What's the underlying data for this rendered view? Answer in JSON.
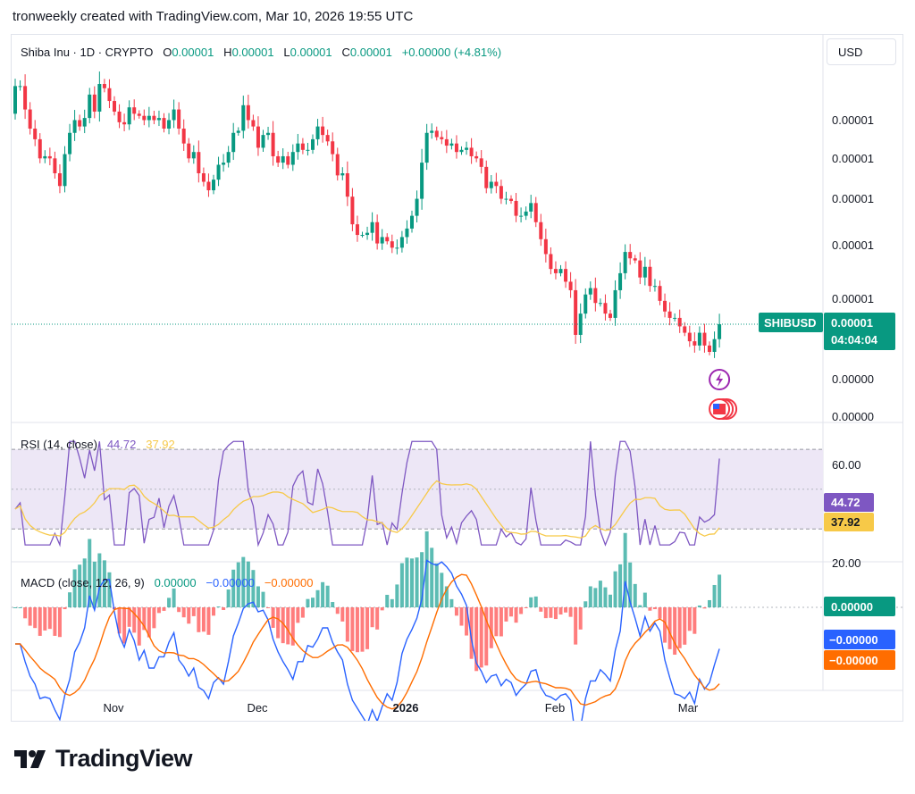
{
  "caption": "tronweekly created with TradingView.com, Mar 10, 2026 19:55 UTC",
  "header": {
    "symbol": "Shiba Inu · 1D · CRYPTO",
    "o_label": "O",
    "o_value": "0.00001",
    "h_label": "H",
    "h_value": "0.00001",
    "l_label": "L",
    "l_value": "0.00001",
    "c_label": "C",
    "c_value": "0.00001",
    "change": "+0.00000 (+4.81%)"
  },
  "currency_button": "USD",
  "watermark": "TradingView",
  "colors": {
    "up": "#089981",
    "down": "#f23645",
    "rsi": "#7e57c2",
    "rsi_ma": "#f7c948",
    "macd": "#2962ff",
    "signal": "#ff6d00",
    "rsi_band": "#ede7f6"
  },
  "icons": [
    "lightning-event-icon",
    "us-flag-events-icon"
  ],
  "chart_data": [
    {
      "type": "candlestick",
      "title": "Shiba Inu · 1D · CRYPTO",
      "x_tick_labels": [
        "Nov",
        "Dec",
        "2026",
        "Feb",
        "Mar"
      ],
      "y_tick_labels": [
        "0.00001",
        "0.00001",
        "0.00001",
        "0.00001",
        "0.00001",
        "0.00000",
        "0.00000"
      ],
      "last_price_label": {
        "symbol": "SHIBUSD",
        "price": "0.00001",
        "countdown": "04:04:04"
      },
      "candles_approx": [
        [
          100,
          113
        ],
        [
          113,
          113
        ],
        [
          113,
          102
        ],
        [
          102,
          93
        ],
        [
          93,
          88
        ],
        [
          88,
          79
        ],
        [
          79,
          80
        ],
        [
          80,
          79
        ],
        [
          79,
          72
        ],
        [
          72,
          66
        ],
        [
          66,
          81
        ],
        [
          81,
          91
        ],
        [
          91,
          97
        ],
        [
          97,
          94
        ],
        [
          94,
          98
        ],
        [
          98,
          109
        ],
        [
          109,
          101
        ],
        [
          101,
          114
        ],
        [
          114,
          112
        ],
        [
          112,
          106
        ],
        [
          106,
          101
        ],
        [
          101,
          96
        ],
        [
          96,
          95
        ],
        [
          95,
          103
        ],
        [
          103,
          100
        ],
        [
          100,
          99
        ],
        [
          99,
          97
        ],
        [
          97,
          99
        ],
        [
          99,
          97
        ],
        [
          97,
          98
        ],
        [
          98,
          93
        ],
        [
          93,
          97
        ],
        [
          97,
          102
        ],
        [
          102,
          93
        ],
        [
          93,
          86
        ],
        [
          86,
          79
        ],
        [
          79,
          82
        ],
        [
          82,
          72
        ],
        [
          72,
          68
        ],
        [
          68,
          64
        ],
        [
          64,
          69
        ],
        [
          69,
          76
        ],
        [
          76,
          77
        ],
        [
          77,
          82
        ],
        [
          82,
          91
        ],
        [
          91,
          92
        ],
        [
          92,
          104
        ],
        [
          104,
          97
        ],
        [
          97,
          94
        ],
        [
          94,
          84
        ],
        [
          84,
          90
        ],
        [
          90,
          91
        ],
        [
          91,
          80
        ],
        [
          80,
          77
        ],
        [
          77,
          80
        ],
        [
          80,
          76
        ],
        [
          76,
          82
        ],
        [
          82,
          86
        ],
        [
          86,
          83
        ],
        [
          83,
          83
        ],
        [
          83,
          88
        ],
        [
          88,
          94
        ],
        [
          94,
          90
        ],
        [
          90,
          87
        ],
        [
          87,
          81
        ],
        [
          81,
          71
        ],
        [
          71,
          72
        ],
        [
          72,
          61
        ],
        [
          61,
          48
        ],
        [
          48,
          43
        ],
        [
          43,
          43
        ],
        [
          43,
          44
        ],
        [
          44,
          49
        ],
        [
          49,
          39
        ],
        [
          39,
          42
        ],
        [
          42,
          40
        ],
        [
          40,
          37
        ],
        [
          37,
          37
        ],
        [
          37,
          42
        ],
        [
          42,
          46
        ],
        [
          46,
          52
        ],
        [
          52,
          60
        ],
        [
          60,
          77
        ],
        [
          77,
          91
        ],
        [
          91,
          92
        ],
        [
          92,
          89
        ],
        [
          89,
          88
        ],
        [
          88,
          85
        ],
        [
          85,
          86
        ],
        [
          86,
          82
        ],
        [
          82,
          83
        ],
        [
          83,
          84
        ],
        [
          84,
          80
        ],
        [
          80,
          79
        ],
        [
          79,
          75
        ],
        [
          75,
          65
        ],
        [
          65,
          68
        ],
        [
          68,
          66
        ],
        [
          66,
          60
        ],
        [
          60,
          60
        ],
        [
          60,
          59
        ],
        [
          59,
          52
        ],
        [
          52,
          52
        ],
        [
          52,
          54
        ],
        [
          54,
          58
        ],
        [
          58,
          49
        ],
        [
          49,
          41
        ],
        [
          41,
          34
        ],
        [
          34,
          27
        ],
        [
          27,
          25
        ],
        [
          25,
          27
        ],
        [
          27,
          21
        ],
        [
          21,
          17
        ],
        [
          17,
          -4
        ],
        [
          -4,
          6
        ],
        [
          6,
          15
        ],
        [
          15,
          18
        ],
        [
          18,
          11
        ],
        [
          11,
          11
        ],
        [
          11,
          6
        ],
        [
          6,
          4
        ],
        [
          4,
          17
        ],
        [
          17,
          25
        ],
        [
          25,
          35
        ],
        [
          35,
          32
        ],
        [
          32,
          31
        ],
        [
          31,
          23
        ],
        [
          23,
          28
        ],
        [
          28,
          19
        ],
        [
          19,
          19
        ],
        [
          19,
          12
        ],
        [
          12,
          7
        ],
        [
          7,
          4
        ],
        [
          4,
          4
        ],
        [
          4,
          0
        ],
        [
          0,
          -3
        ],
        [
          -3,
          -7
        ],
        [
          -7,
          -9
        ],
        [
          -9,
          -3
        ],
        [
          -3,
          -9
        ],
        [
          -9,
          -12
        ],
        [
          -12,
          -6
        ],
        [
          -6,
          1
        ]
      ]
    },
    {
      "type": "line",
      "title": "RSI (14, close)",
      "series": [
        {
          "name": "RSI",
          "last_value": "44.72"
        },
        {
          "name": "RSI MA",
          "last_value": "37.92"
        }
      ],
      "y_tick_labels": [
        "60.00",
        "20.00"
      ],
      "bands": [
        70,
        30
      ],
      "ylim": [
        18,
        75
      ]
    },
    {
      "type": "line+bar",
      "title": "MACD (close, 12, 26, 9)",
      "legend_values": {
        "histogram": "0.00000",
        "macd": "−0.00000",
        "signal": "−0.00000"
      },
      "last_value_labels": {
        "histogram": "0.00000",
        "macd": "−0.00000",
        "signal": "−0.00000"
      }
    }
  ]
}
